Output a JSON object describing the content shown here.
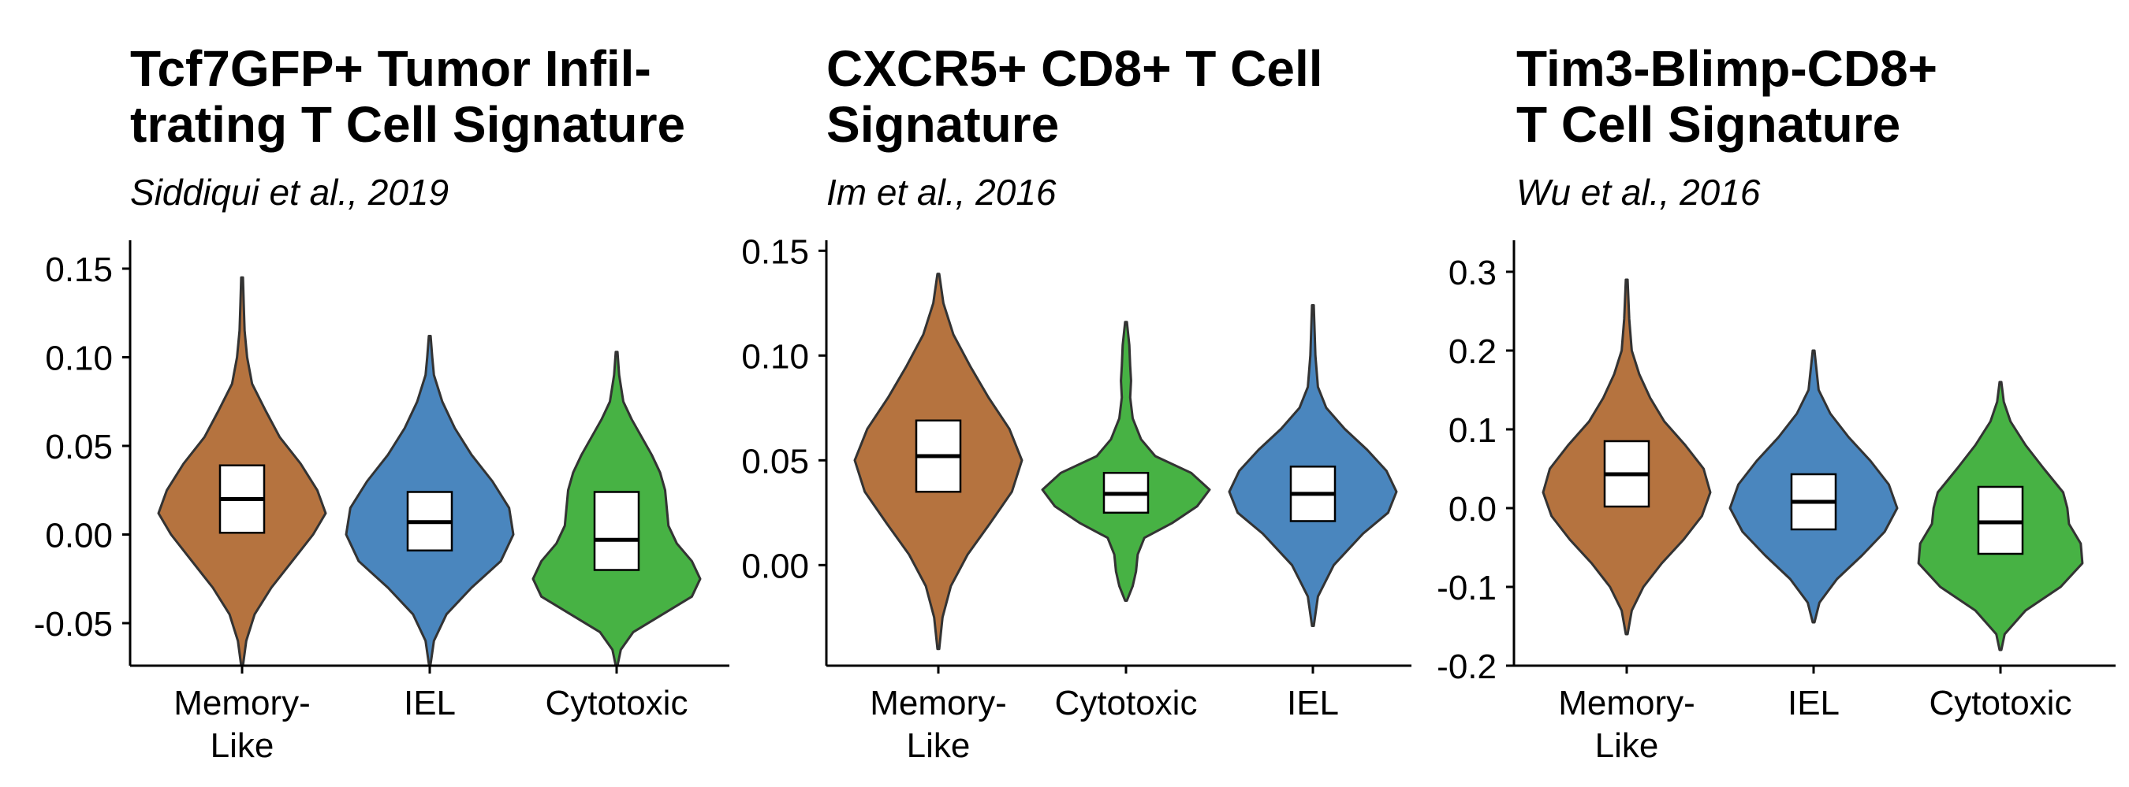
{
  "chart_data": [
    {
      "type": "violin",
      "title": "Tcf7GFP+ Tumor Infil-\ntrating T Cell Signature",
      "subtitle": "Siddiqui et al., 2019",
      "categories": [
        "Memory-\nLike",
        "IEL",
        "Cytotoxic"
      ],
      "ylim": [
        -0.074,
        0.166
      ],
      "yticks": [
        -0.05,
        0.0,
        0.05,
        0.1,
        0.15
      ],
      "yticklabels": [
        "-0.05",
        "0.00",
        "0.05",
        "0.10",
        "0.15"
      ],
      "grid": false,
      "legend": "none",
      "series": [
        {
          "category": "Memory-\nLike",
          "color": "#b5733f",
          "min": -0.074,
          "max": 0.145,
          "q1": 0.001,
          "median": 0.02,
          "q3": 0.039,
          "density": [
            [
              -0.074,
              0.01
            ],
            [
              -0.06,
              0.05
            ],
            [
              -0.045,
              0.15
            ],
            [
              -0.03,
              0.35
            ],
            [
              -0.015,
              0.6
            ],
            [
              0.0,
              0.85
            ],
            [
              0.012,
              1.0
            ],
            [
              0.025,
              0.9
            ],
            [
              0.04,
              0.7
            ],
            [
              0.055,
              0.45
            ],
            [
              0.07,
              0.28
            ],
            [
              0.085,
              0.12
            ],
            [
              0.1,
              0.06
            ],
            [
              0.115,
              0.03
            ],
            [
              0.13,
              0.02
            ],
            [
              0.145,
              0.01
            ]
          ]
        },
        {
          "category": "IEL",
          "color": "#4a86be",
          "min": -0.073,
          "max": 0.112,
          "q1": -0.009,
          "median": 0.007,
          "q3": 0.024,
          "density": [
            [
              -0.073,
              0.01
            ],
            [
              -0.06,
              0.05
            ],
            [
              -0.045,
              0.2
            ],
            [
              -0.03,
              0.5
            ],
            [
              -0.015,
              0.85
            ],
            [
              0.0,
              1.0
            ],
            [
              0.015,
              0.95
            ],
            [
              0.03,
              0.75
            ],
            [
              0.045,
              0.5
            ],
            [
              0.06,
              0.3
            ],
            [
              0.075,
              0.15
            ],
            [
              0.09,
              0.05
            ],
            [
              0.1,
              0.03
            ],
            [
              0.112,
              0.01
            ]
          ]
        },
        {
          "category": "Cytotoxic",
          "color": "#47b244",
          "min": -0.074,
          "max": 0.103,
          "q1": -0.02,
          "median": -0.003,
          "q3": 0.024,
          "density": [
            [
              -0.074,
              0.01
            ],
            [
              -0.065,
              0.05
            ],
            [
              -0.055,
              0.2
            ],
            [
              -0.045,
              0.55
            ],
            [
              -0.035,
              0.9
            ],
            [
              -0.025,
              1.0
            ],
            [
              -0.015,
              0.9
            ],
            [
              -0.005,
              0.72
            ],
            [
              0.005,
              0.62
            ],
            [
              0.015,
              0.6
            ],
            [
              0.025,
              0.58
            ],
            [
              0.035,
              0.52
            ],
            [
              0.045,
              0.42
            ],
            [
              0.055,
              0.3
            ],
            [
              0.065,
              0.18
            ],
            [
              0.075,
              0.08
            ],
            [
              0.09,
              0.03
            ],
            [
              0.103,
              0.01
            ]
          ]
        }
      ]
    },
    {
      "type": "violin",
      "title": "CXCR5+ CD8+ T Cell\nSignature",
      "subtitle": "Im et al., 2016",
      "categories": [
        "Memory-\nLike",
        "Cytotoxic",
        "IEL"
      ],
      "ylim": [
        -0.048,
        0.155
      ],
      "yticks": [
        0.0,
        0.05,
        0.1,
        0.15
      ],
      "yticklabels": [
        "0.00",
        "0.05",
        "0.10",
        "0.15"
      ],
      "grid": false,
      "legend": "none",
      "series": [
        {
          "category": "Memory-\nLike",
          "color": "#b5733f",
          "min": -0.04,
          "max": 0.139,
          "q1": 0.035,
          "median": 0.052,
          "q3": 0.069,
          "density": [
            [
              -0.04,
              0.01
            ],
            [
              -0.025,
              0.05
            ],
            [
              -0.01,
              0.15
            ],
            [
              0.005,
              0.35
            ],
            [
              0.02,
              0.62
            ],
            [
              0.035,
              0.88
            ],
            [
              0.05,
              1.0
            ],
            [
              0.065,
              0.85
            ],
            [
              0.08,
              0.6
            ],
            [
              0.095,
              0.38
            ],
            [
              0.11,
              0.18
            ],
            [
              0.125,
              0.06
            ],
            [
              0.139,
              0.01
            ]
          ]
        },
        {
          "category": "Cytotoxic",
          "color": "#47b244",
          "min": -0.017,
          "max": 0.116,
          "q1": 0.025,
          "median": 0.034,
          "q3": 0.044,
          "density": [
            [
              -0.017,
              0.01
            ],
            [
              -0.01,
              0.08
            ],
            [
              -0.003,
              0.12
            ],
            [
              0.005,
              0.14
            ],
            [
              0.013,
              0.22
            ],
            [
              0.02,
              0.55
            ],
            [
              0.028,
              0.85
            ],
            [
              0.036,
              1.0
            ],
            [
              0.044,
              0.78
            ],
            [
              0.052,
              0.35
            ],
            [
              0.06,
              0.18
            ],
            [
              0.07,
              0.08
            ],
            [
              0.08,
              0.05
            ],
            [
              0.088,
              0.06
            ],
            [
              0.095,
              0.05
            ],
            [
              0.105,
              0.04
            ],
            [
              0.116,
              0.01
            ]
          ]
        },
        {
          "category": "IEL",
          "color": "#4a86be",
          "min": -0.029,
          "max": 0.124,
          "q1": 0.021,
          "median": 0.034,
          "q3": 0.047,
          "density": [
            [
              -0.029,
              0.01
            ],
            [
              -0.015,
              0.06
            ],
            [
              0.0,
              0.25
            ],
            [
              0.015,
              0.6
            ],
            [
              0.025,
              0.9
            ],
            [
              0.035,
              1.0
            ],
            [
              0.045,
              0.88
            ],
            [
              0.055,
              0.65
            ],
            [
              0.065,
              0.38
            ],
            [
              0.075,
              0.16
            ],
            [
              0.085,
              0.06
            ],
            [
              0.1,
              0.03
            ],
            [
              0.124,
              0.01
            ]
          ]
        }
      ]
    },
    {
      "type": "violin",
      "title": "Tim3-Blimp-CD8+\nT Cell Signature",
      "subtitle": "Wu et al., 2016",
      "categories": [
        "Memory-\nLike",
        "IEL",
        "Cytotoxic"
      ],
      "ylim": [
        -0.2,
        0.34
      ],
      "yticks": [
        -0.2,
        -0.1,
        0.0,
        0.1,
        0.2,
        0.3
      ],
      "yticklabels": [
        "-0.2",
        "-0.1",
        "0.0",
        "0.1",
        "0.2",
        "0.3"
      ],
      "grid": false,
      "legend": "none",
      "series": [
        {
          "category": "Memory-\nLike",
          "color": "#b5733f",
          "min": -0.16,
          "max": 0.29,
          "q1": 0.002,
          "median": 0.043,
          "q3": 0.085,
          "density": [
            [
              -0.16,
              0.01
            ],
            [
              -0.13,
              0.06
            ],
            [
              -0.1,
              0.2
            ],
            [
              -0.07,
              0.42
            ],
            [
              -0.04,
              0.68
            ],
            [
              -0.01,
              0.9
            ],
            [
              0.02,
              1.0
            ],
            [
              0.05,
              0.92
            ],
            [
              0.08,
              0.7
            ],
            [
              0.11,
              0.45
            ],
            [
              0.14,
              0.28
            ],
            [
              0.17,
              0.15
            ],
            [
              0.2,
              0.06
            ],
            [
              0.24,
              0.03
            ],
            [
              0.29,
              0.01
            ]
          ]
        },
        {
          "category": "IEL",
          "color": "#4a86be",
          "min": -0.145,
          "max": 0.2,
          "q1": -0.027,
          "median": 0.008,
          "q3": 0.043,
          "density": [
            [
              -0.145,
              0.01
            ],
            [
              -0.12,
              0.07
            ],
            [
              -0.09,
              0.28
            ],
            [
              -0.06,
              0.58
            ],
            [
              -0.03,
              0.85
            ],
            [
              0.0,
              1.0
            ],
            [
              0.03,
              0.9
            ],
            [
              0.06,
              0.68
            ],
            [
              0.09,
              0.42
            ],
            [
              0.12,
              0.2
            ],
            [
              0.15,
              0.06
            ],
            [
              0.2,
              0.01
            ]
          ]
        },
        {
          "category": "Cytotoxic",
          "color": "#47b244",
          "min": -0.18,
          "max": 0.16,
          "q1": -0.058,
          "median": -0.018,
          "q3": 0.027,
          "density": [
            [
              -0.18,
              0.01
            ],
            [
              -0.16,
              0.05
            ],
            [
              -0.13,
              0.3
            ],
            [
              -0.1,
              0.72
            ],
            [
              -0.07,
              0.98
            ],
            [
              -0.045,
              0.96
            ],
            [
              -0.02,
              0.82
            ],
            [
              0.0,
              0.8
            ],
            [
              0.02,
              0.75
            ],
            [
              0.05,
              0.52
            ],
            [
              0.08,
              0.3
            ],
            [
              0.11,
              0.12
            ],
            [
              0.135,
              0.04
            ],
            [
              0.16,
              0.01
            ]
          ]
        }
      ]
    }
  ]
}
